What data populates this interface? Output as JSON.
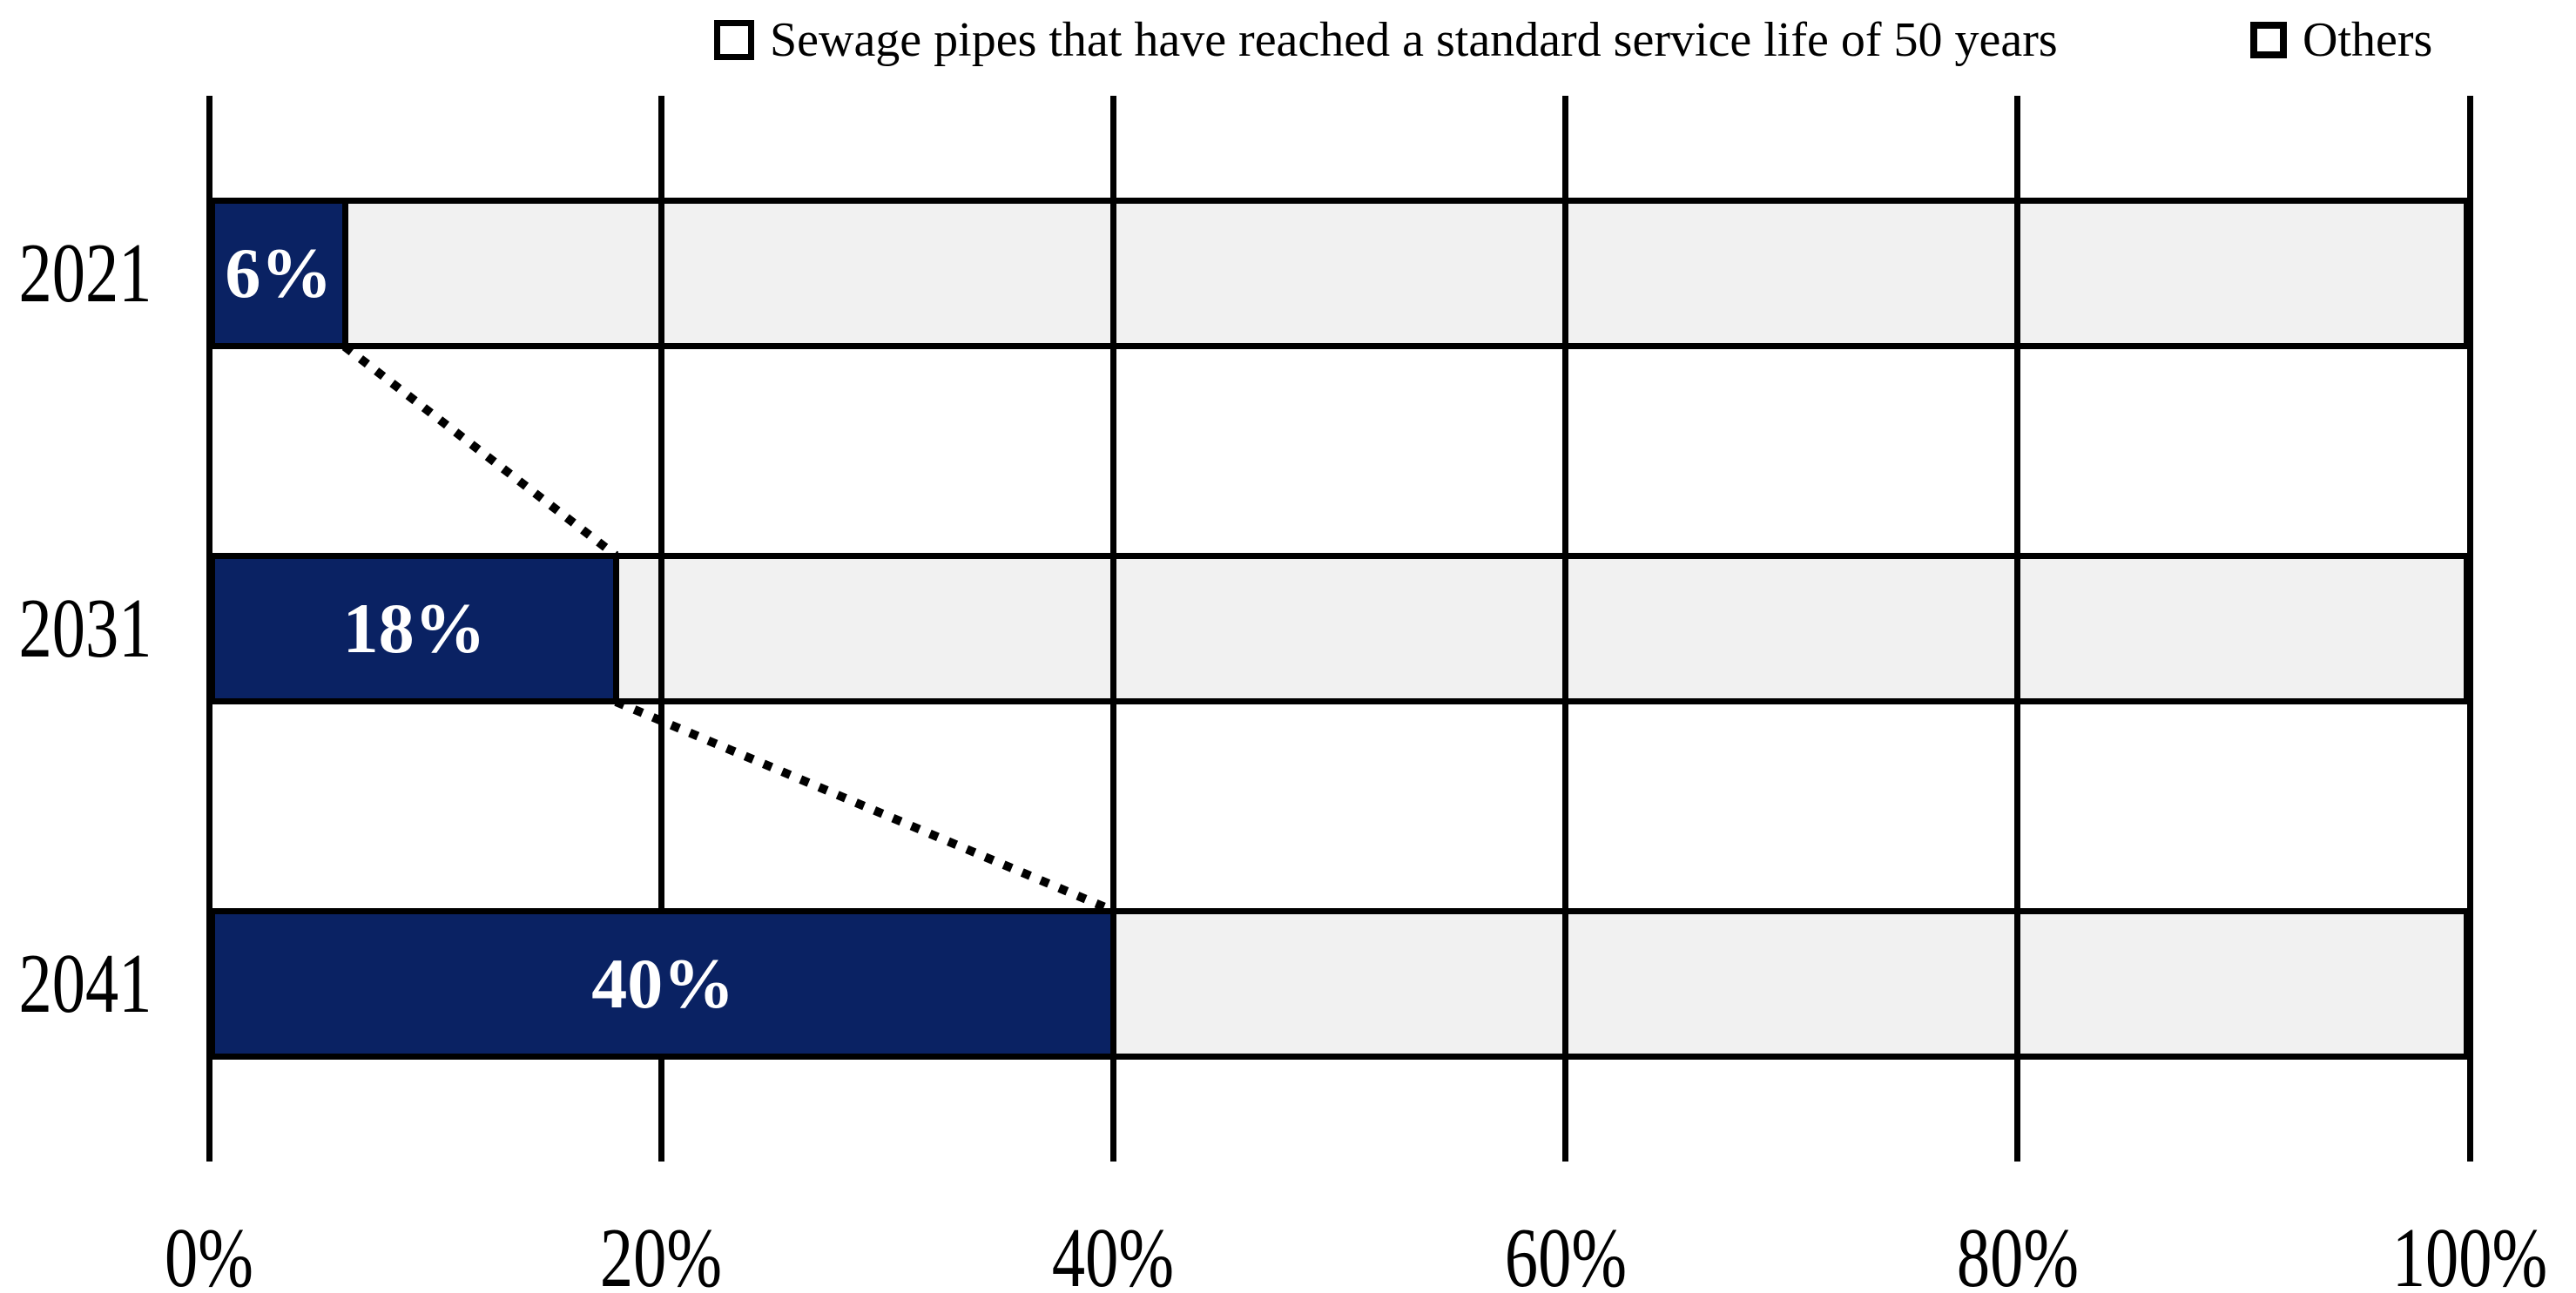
{
  "chart_data": {
    "type": "bar",
    "orientation": "horizontal",
    "stacked": true,
    "title": "",
    "categories": [
      "2021",
      "2031",
      "2041"
    ],
    "series": [
      {
        "name": "Sewage pipes that have reached a standard service life of 50 years",
        "color": "#0A2263",
        "values": [
          6,
          18,
          40
        ]
      },
      {
        "name": "Others",
        "color": "#F1F1F1",
        "values": [
          94,
          82,
          60
        ]
      }
    ],
    "bar_value_labels": [
      "6%",
      "18%",
      "40%"
    ],
    "x_axis": {
      "ticks": [
        "0%",
        "20%",
        "40%",
        "60%",
        "80%",
        "100%"
      ],
      "values": [
        0,
        20,
        40,
        60,
        80,
        100
      ],
      "range": [
        0,
        100
      ]
    },
    "grid": "vertical-gridlines-every-20-percent",
    "legend_position": "top",
    "annotations": "dotted black connector lines linking the right ends of consecutive navy bars (6% to 18%, 18% to 40%)"
  },
  "legend": {
    "items": [
      {
        "label": "Sewage pipes that have reached a standard service life of 50 years",
        "swatch": "filled-navy-square"
      },
      {
        "label": "Others",
        "swatch": "outlined-light-gray-square"
      }
    ]
  },
  "colors": {
    "series1_fill": "#0A2263",
    "series2_fill": "#F1F1F1",
    "line_color": "#000000",
    "bar_label_text": "#FFFFFF",
    "axis_text": "#000000",
    "background": "#FFFFFF"
  }
}
